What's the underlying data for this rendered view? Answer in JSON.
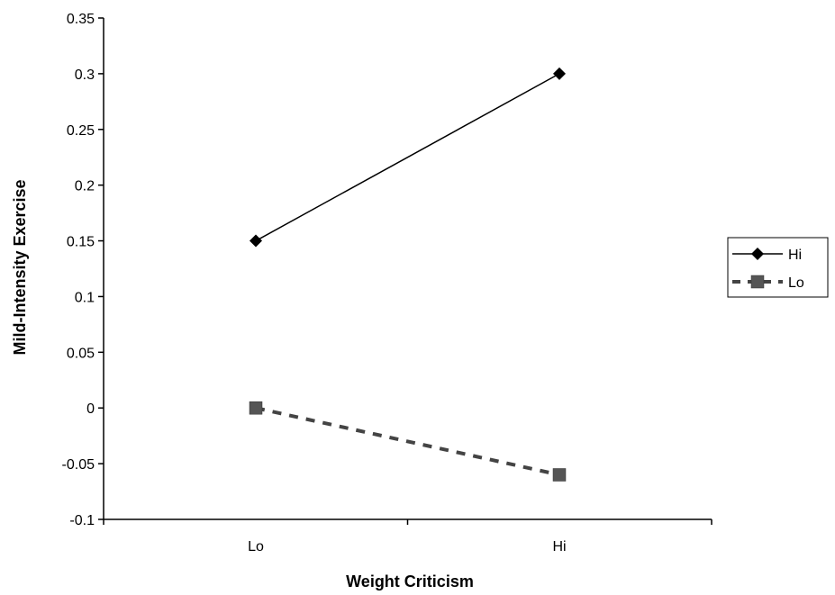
{
  "chart_data": {
    "type": "line",
    "title": "",
    "xlabel": "Weight Criticism",
    "ylabel": "Mild-Intensity Exercise",
    "categories": [
      "Lo",
      "Hi"
    ],
    "ylim": [
      -0.1,
      0.35
    ],
    "yticks": [
      -0.1,
      -0.05,
      0,
      0.05,
      0.1,
      0.15,
      0.2,
      0.25,
      0.3,
      0.35
    ],
    "ytick_labels": [
      "-0.1",
      "-0.05",
      "0",
      "0.05",
      "0.1",
      "0.15",
      "0.2",
      "0.25",
      "0.3",
      "0.35"
    ],
    "grid": false,
    "legend_position": "right",
    "series": [
      {
        "name": "Hi",
        "values": [
          0.15,
          0.3
        ],
        "marker": "diamond",
        "line_style": "solid",
        "color": "#000000"
      },
      {
        "name": "Lo",
        "values": [
          0.0,
          -0.06
        ],
        "marker": "square",
        "line_style": "dashed",
        "color": "#555555"
      }
    ]
  }
}
